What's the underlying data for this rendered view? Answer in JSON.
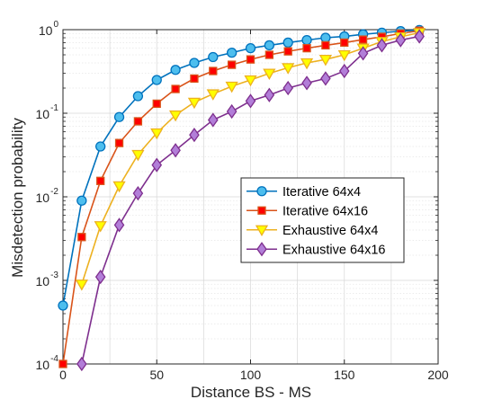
{
  "chart_data": {
    "type": "line",
    "xlabel": "Distance BS - MS",
    "ylabel": "Misdetection probability",
    "xlim": [
      0,
      200
    ],
    "ylim": [
      0.0001,
      1
    ],
    "yscale": "log",
    "grid": true,
    "minor_grid": true,
    "legend_position": "center-right",
    "x_ticks": [
      "0",
      "50",
      "100",
      "150",
      "200"
    ],
    "y_ticks": [
      {
        "base": "10",
        "exp": "-4",
        "value": 0.0001
      },
      {
        "base": "10",
        "exp": "-3",
        "value": 0.001
      },
      {
        "base": "10",
        "exp": "-2",
        "value": 0.01
      },
      {
        "base": "10",
        "exp": "-1",
        "value": 0.1
      },
      {
        "base": "10",
        "exp": "0",
        "value": 1
      }
    ],
    "series": [
      {
        "name": "Iterative 64x4",
        "color": "#0072bd",
        "marker_fill": "#4dbeee",
        "marker": "circle",
        "x": [
          0,
          10,
          20,
          30,
          40,
          50,
          60,
          70,
          80,
          90,
          100,
          110,
          120,
          130,
          140,
          150,
          160,
          170,
          180,
          190
        ],
        "y": [
          0.0005,
          0.009,
          0.04,
          0.09,
          0.16,
          0.25,
          0.33,
          0.4,
          0.47,
          0.53,
          0.6,
          0.65,
          0.7,
          0.75,
          0.8,
          0.83,
          0.88,
          0.92,
          0.96,
          0.99
        ]
      },
      {
        "name": "Iterative 64x16",
        "color": "#d95319",
        "marker_fill": "#ff0000",
        "marker": "square",
        "x": [
          0,
          10,
          20,
          30,
          40,
          50,
          60,
          70,
          80,
          90,
          100,
          110,
          120,
          130,
          140,
          150,
          160,
          170,
          180,
          190
        ],
        "y": [
          0.0001,
          0.0033,
          0.0155,
          0.044,
          0.08,
          0.13,
          0.195,
          0.26,
          0.32,
          0.38,
          0.44,
          0.5,
          0.55,
          0.6,
          0.65,
          0.7,
          0.76,
          0.82,
          0.9,
          0.97
        ]
      },
      {
        "name": "Exhaustive 64x4",
        "color": "#edb120",
        "marker_fill": "#ffff00",
        "marker": "triangle-down",
        "x": [
          10,
          20,
          30,
          40,
          50,
          60,
          70,
          80,
          90,
          100,
          110,
          120,
          130,
          140,
          150,
          160,
          170,
          180,
          190
        ],
        "y": [
          0.0009,
          0.0045,
          0.0135,
          0.032,
          0.058,
          0.095,
          0.135,
          0.17,
          0.21,
          0.25,
          0.3,
          0.35,
          0.4,
          0.44,
          0.5,
          0.6,
          0.72,
          0.82,
          0.92
        ]
      },
      {
        "name": "Exhaustive 64x16",
        "color": "#7e2f8e",
        "marker_fill": "#b27ed8",
        "marker": "diamond",
        "x": [
          10,
          20,
          30,
          40,
          50,
          60,
          70,
          80,
          90,
          100,
          110,
          120,
          130,
          140,
          150,
          160,
          170,
          180,
          190
        ],
        "y": [
          0.0001,
          0.0011,
          0.0046,
          0.011,
          0.024,
          0.036,
          0.055,
          0.083,
          0.105,
          0.14,
          0.165,
          0.2,
          0.23,
          0.26,
          0.32,
          0.52,
          0.65,
          0.75,
          0.83
        ]
      }
    ]
  }
}
